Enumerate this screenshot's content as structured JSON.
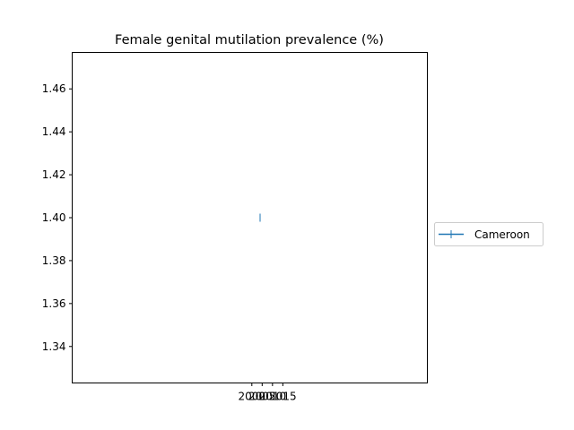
{
  "chart_data": {
    "type": "line",
    "title": "Female genital mutilation prevalence (%)",
    "xlabel": "",
    "ylabel": "",
    "x_ticks": [
      2000,
      2005,
      2010,
      2015
    ],
    "y_ticks": [
      1.34,
      1.36,
      1.38,
      1.4,
      1.42,
      1.44,
      1.46
    ],
    "y_tick_labels": [
      "1.34",
      "1.36",
      "1.38",
      "1.40",
      "1.42",
      "1.44",
      "1.46"
    ],
    "ylim": [
      1.323,
      1.477
    ],
    "xlim": [
      1913,
      2085
    ],
    "series": [
      {
        "name": "Cameroon",
        "color": "#1f77b4",
        "marker": "|",
        "points": [
          {
            "x": 2004,
            "y": 1.4
          }
        ]
      }
    ],
    "legend": {
      "placement": "right-outside",
      "entries": [
        "Cameroon"
      ]
    },
    "grid": false
  }
}
